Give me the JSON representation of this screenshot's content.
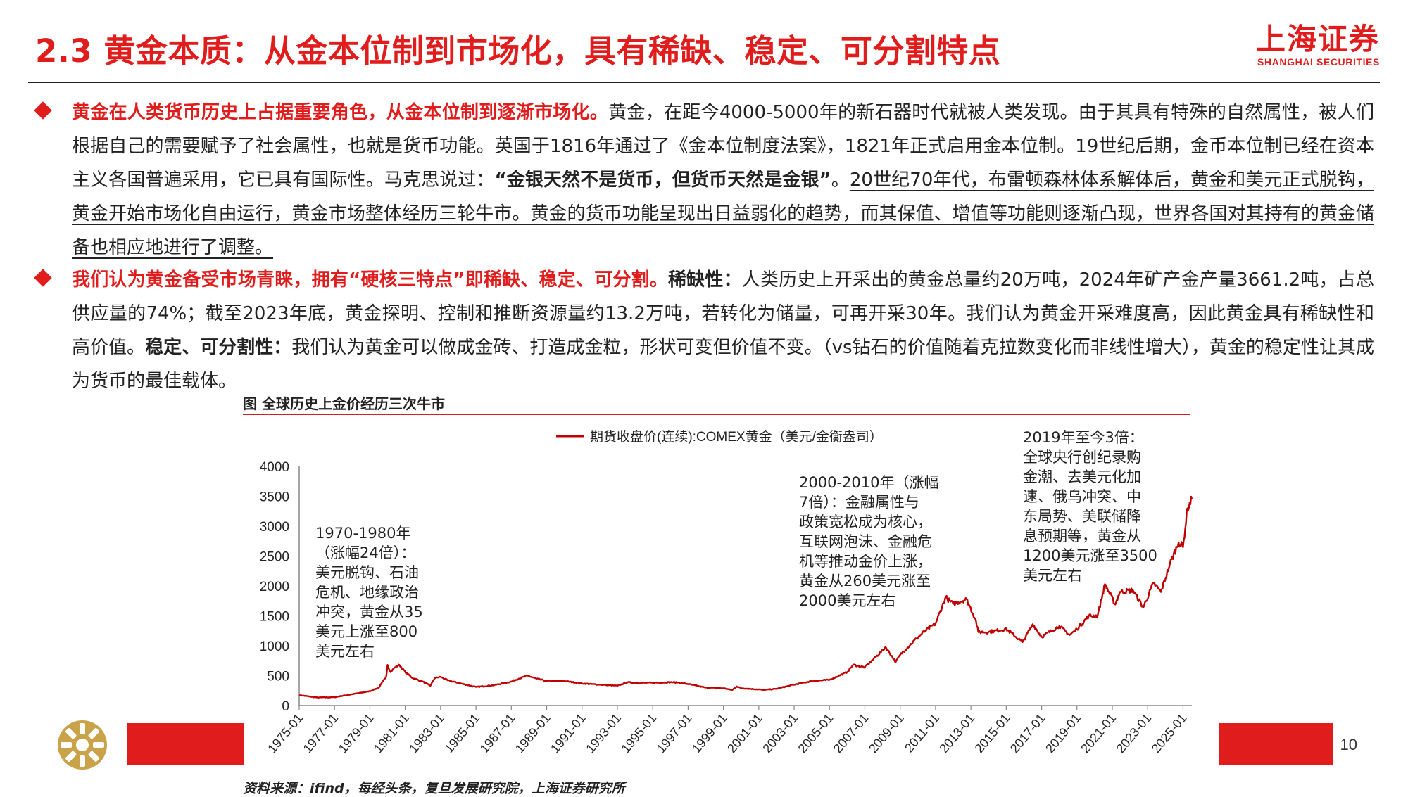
{
  "header": {
    "title": "2.3 黄金本质：从金本位制到市场化，具有稀缺、稳定、可分割特点",
    "logo_cn": "上海证券",
    "logo_en": "SHANGHAI SECURITIES"
  },
  "bullet1": {
    "lead": "黄金在人类货币历史上占据重要角色，从金本位制到逐渐市场化。",
    "text1": "黄金，在距今4000-5000年的新石器时代就被人类发现。由于其具有特殊的自然属性，被人们根据自己的需要赋予了社会属性，也就是货币功能。英国于1816年通过了《金本位制度法案》，1821年正式启用金本位制。19世纪后期，金币本位制已经在资本主义各国普遍采用，它已具有国际性。马克思说过：",
    "quote": "“金银天然不是货币，但货币天然是金银”",
    "text2": "。",
    "underlined": "20世纪70年代，布雷顿森林体系解体后，黄金和美元正式脱钩，黄金开始市场化自由运行，黄金市场整体经历三轮牛市。黄金的货币功能呈现出日益弱化的趋势，而其保值、增值等功能则逐渐凸现，世界各国对其持有的黄金储备也相应地进行了调整。"
  },
  "bullet2": {
    "lead": "我们认为黄金备受市场青睐，拥有“硬核三特点”即稀缺、稳定、可分割。",
    "k1": "稀缺性：",
    "t1": "人类历史上开采出的黄金总量约20万吨，2024年矿产金产量3661.2吨，占总供应量的74%；截至2023年底，黄金探明、控制和推断资源量约13.2万吨，若转化为储量，可再开采30年。我们认为黄金开采难度高，因此黄金具有稀缺性和高价值。",
    "k2": "稳定、可分割性：",
    "t2": "我们认为黄金可以做成金砖、打造成金粒，形状可变但价值不变。（vs钻石的价值随着克拉数变化而非线性增大），黄金的稳定性让其成为货币的最佳载体。"
  },
  "figure_title": "图 全球历史上金价经历三次牛市",
  "source": "资料来源：ifind，每经头条，复旦发展研究院，上海证券研究所",
  "page_number": "10",
  "annotations": {
    "a1": [
      "1970-1980年",
      "（涨幅24倍）：",
      "美元脱钩、石油",
      "危机、地缘政治",
      "冲突，黄金从35",
      "美元上涨至800",
      "美元左右"
    ],
    "a2": [
      "2000-2010年（涨幅",
      "7倍）：金融属性与",
      "政策宽松成为核心，",
      "互联网泡沫、金融危",
      "机等推动金价上涨，",
      "黄金从260美元涨至",
      "2000美元左右"
    ],
    "a3": [
      "2019年至今3倍：",
      "全球央行创纪录购",
      "金潮、去美元化加",
      "速、俄乌冲突、中",
      "东局势、美联储降",
      "息预期等，黄金从",
      "1200美元涨至3500",
      "美元左右"
    ]
  },
  "colors": {
    "accent": "#e01c1c",
    "line": "#c00000"
  },
  "chart_data": {
    "type": "line",
    "title": "",
    "xlabel": "",
    "ylabel": "",
    "ylim": [
      0,
      4000
    ],
    "yticks": [
      0,
      500,
      1000,
      1500,
      2000,
      2500,
      3000,
      3500,
      4000
    ],
    "xlim": [
      "1975-01",
      "2025-07"
    ],
    "xticks": [
      "1975-01",
      "1977-01",
      "1979-01",
      "1981-01",
      "1983-01",
      "1985-01",
      "1987-01",
      "1989-01",
      "1991-01",
      "1993-01",
      "1995-01",
      "1997-01",
      "1999-01",
      "2001-01",
      "2003-01",
      "2005-01",
      "2007-01",
      "2009-01",
      "2011-01",
      "2013-01",
      "2015-01",
      "2017-01",
      "2019-01",
      "2021-01",
      "2023-01",
      "2025-01"
    ],
    "legend": {
      "position": "top-center"
    },
    "grid": false,
    "series": [
      {
        "name": "期货收盘价(连续):COMEX黄金（美元/金衡盎司）",
        "x": [
          "1975-01",
          "1976-01",
          "1977-01",
          "1978-01",
          "1979-01",
          "1979-07",
          "1979-12",
          "1980-01",
          "1980-03",
          "1980-06",
          "1980-09",
          "1981-01",
          "1981-06",
          "1982-01",
          "1982-06",
          "1982-09",
          "1983-01",
          "1983-06",
          "1984-01",
          "1985-01",
          "1986-01",
          "1987-01",
          "1987-06",
          "1987-12",
          "1988-06",
          "1989-01",
          "1990-01",
          "1991-01",
          "1992-01",
          "1993-01",
          "1993-08",
          "1994-01",
          "1995-01",
          "1996-01",
          "1996-06",
          "1997-01",
          "1998-01",
          "1999-01",
          "1999-07",
          "1999-10",
          "2000-01",
          "2001-01",
          "2001-04",
          "2002-01",
          "2003-01",
          "2004-01",
          "2005-01",
          "2006-01",
          "2006-05",
          "2007-01",
          "2008-01",
          "2008-03",
          "2008-10",
          "2009-01",
          "2009-12",
          "2010-06",
          "2011-01",
          "2011-08",
          "2011-09",
          "2012-01",
          "2012-10",
          "2013-04",
          "2013-06",
          "2014-01",
          "2015-01",
          "2015-12",
          "2016-07",
          "2017-01",
          "2018-01",
          "2018-08",
          "2019-01",
          "2019-09",
          "2020-03",
          "2020-08",
          "2021-03",
          "2021-06",
          "2022-03",
          "2022-10",
          "2023-05",
          "2023-10",
          "2024-04",
          "2024-10",
          "2025-01",
          "2025-04",
          "2025-07"
        ],
        "y": [
          175,
          135,
          140,
          190,
          240,
          300,
          480,
          680,
          560,
          640,
          680,
          560,
          460,
          400,
          330,
          460,
          480,
          420,
          380,
          310,
          340,
          400,
          450,
          500,
          450,
          410,
          410,
          370,
          350,
          330,
          390,
          380,
          380,
          390,
          385,
          360,
          300,
          290,
          260,
          320,
          290,
          270,
          260,
          280,
          350,
          410,
          430,
          560,
          680,
          640,
          920,
          980,
          730,
          850,
          1120,
          1250,
          1370,
          1820,
          1780,
          1700,
          1780,
          1450,
          1230,
          1230,
          1280,
          1060,
          1360,
          1150,
          1330,
          1180,
          1280,
          1500,
          1500,
          2030,
          1690,
          1900,
          1930,
          1640,
          2050,
          1900,
          2360,
          2730,
          2650,
          3300,
          3450
        ]
      }
    ]
  }
}
